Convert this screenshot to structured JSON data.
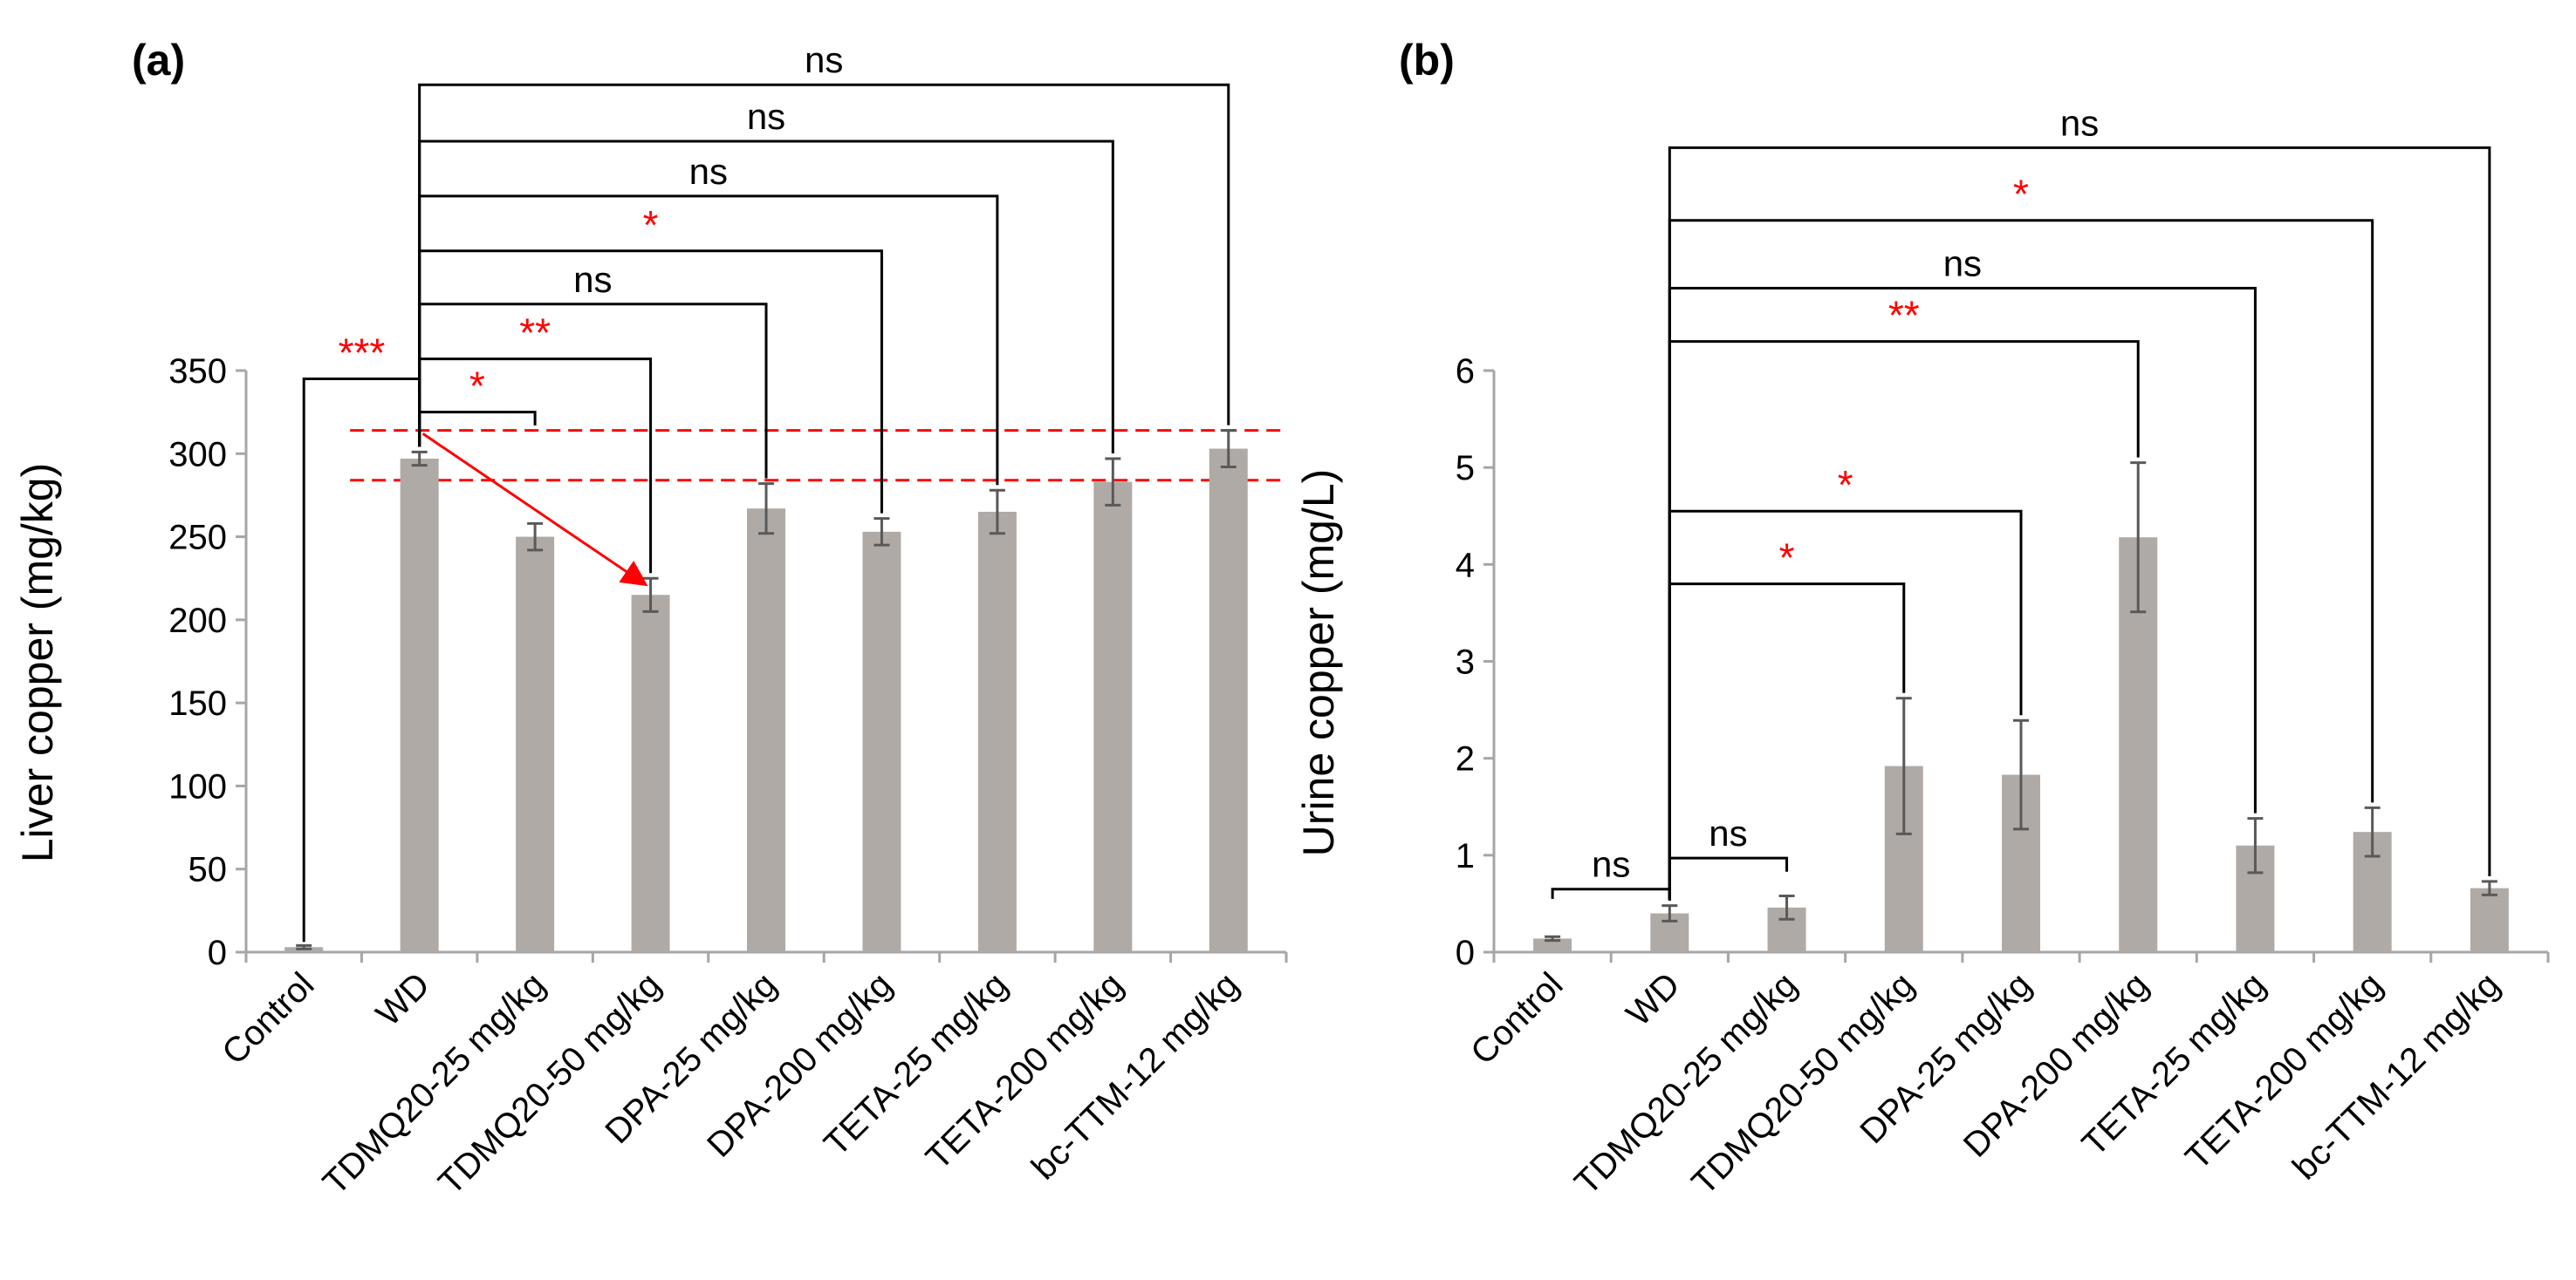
{
  "colors": {
    "bar": "#b0aaa6",
    "axis": "#a6a6a6",
    "bracket": "#000000",
    "star": "#ff0000",
    "error": "#595959",
    "refline": "#ff0000"
  },
  "chart_data": [
    {
      "type": "bar",
      "panel_label": "(a)",
      "ylabel": "Liver copper (mg/kg)",
      "ylim": [
        0,
        350
      ],
      "yticks": [
        "0",
        "50",
        "100",
        "150",
        "200",
        "250",
        "300",
        "350"
      ],
      "categories": [
        "Control",
        "WD",
        "TDMQ20-25 mg/kg",
        "TDMQ20-50 mg/kg",
        "DPA-25 mg/kg",
        "DPA-200 mg/kg",
        "TETA-25 mg/kg",
        "TETA-200 mg/kg",
        "bc-TTM-12 mg/kg"
      ],
      "values": [
        3,
        297,
        250,
        215,
        267,
        253,
        265,
        283,
        303
      ],
      "errors": [
        1,
        4,
        8,
        10,
        15,
        8,
        13,
        14,
        11
      ],
      "reference_lines": [
        314,
        284
      ],
      "arrow": {
        "from_category": 1,
        "from_value": 312,
        "to_category": 3,
        "to_value": 222
      },
      "comparisons": [
        {
          "from": 0,
          "to": 1,
          "label": "***",
          "red": true,
          "level": 345
        },
        {
          "from": 1,
          "to": 2,
          "label": "*",
          "red": true,
          "level": 325
        },
        {
          "from": 1,
          "to": 3,
          "label": "**",
          "red": true,
          "level": 357
        },
        {
          "from": 1,
          "to": 4,
          "label": "ns",
          "red": false,
          "level": 390
        },
        {
          "from": 1,
          "to": 5,
          "label": "*",
          "red": true,
          "level": 422
        },
        {
          "from": 1,
          "to": 6,
          "label": "ns",
          "red": false,
          "level": 455
        },
        {
          "from": 1,
          "to": 7,
          "label": "ns",
          "red": false,
          "level": 488
        },
        {
          "from": 1,
          "to": 8,
          "label": "ns",
          "red": false,
          "level": 522
        }
      ]
    },
    {
      "type": "bar",
      "panel_label": "(b)",
      "ylabel": "Urine copper (mg/L)",
      "ylim": [
        0,
        6
      ],
      "yticks": [
        "0",
        "1",
        "2",
        "3",
        "4",
        "5",
        "6"
      ],
      "categories": [
        "Control",
        "WD",
        "TDMQ20-25 mg/kg",
        "TDMQ20-50 mg/kg",
        "DPA-25 mg/kg",
        "DPA-200 mg/kg",
        "TETA-25 mg/kg",
        "TETA-200 mg/kg",
        "bc-TTM-12 mg/kg"
      ],
      "values": [
        0.14,
        0.4,
        0.46,
        1.92,
        1.83,
        4.28,
        1.1,
        1.24,
        0.66
      ],
      "errors": [
        0.02,
        0.08,
        0.12,
        0.7,
        0.56,
        0.77,
        0.28,
        0.25,
        0.07
      ],
      "comparisons": [
        {
          "from": 0,
          "to": 1,
          "label": "ns",
          "red": false,
          "level": 0.65
        },
        {
          "from": 1,
          "to": 2,
          "label": "ns",
          "red": false,
          "level": 0.97
        },
        {
          "from": 1,
          "to": 3,
          "label": "*",
          "red": true,
          "level": 3.8
        },
        {
          "from": 1,
          "to": 4,
          "label": "*",
          "red": true,
          "level": 4.55
        },
        {
          "from": 1,
          "to": 5,
          "label": "**",
          "red": true,
          "level": 6.3
        },
        {
          "from": 1,
          "to": 6,
          "label": "ns",
          "red": false,
          "level": 6.85
        },
        {
          "from": 1,
          "to": 7,
          "label": "*",
          "red": true,
          "level": 7.55
        },
        {
          "from": 1,
          "to": 8,
          "label": "ns",
          "red": false,
          "level": 8.3
        }
      ]
    }
  ]
}
